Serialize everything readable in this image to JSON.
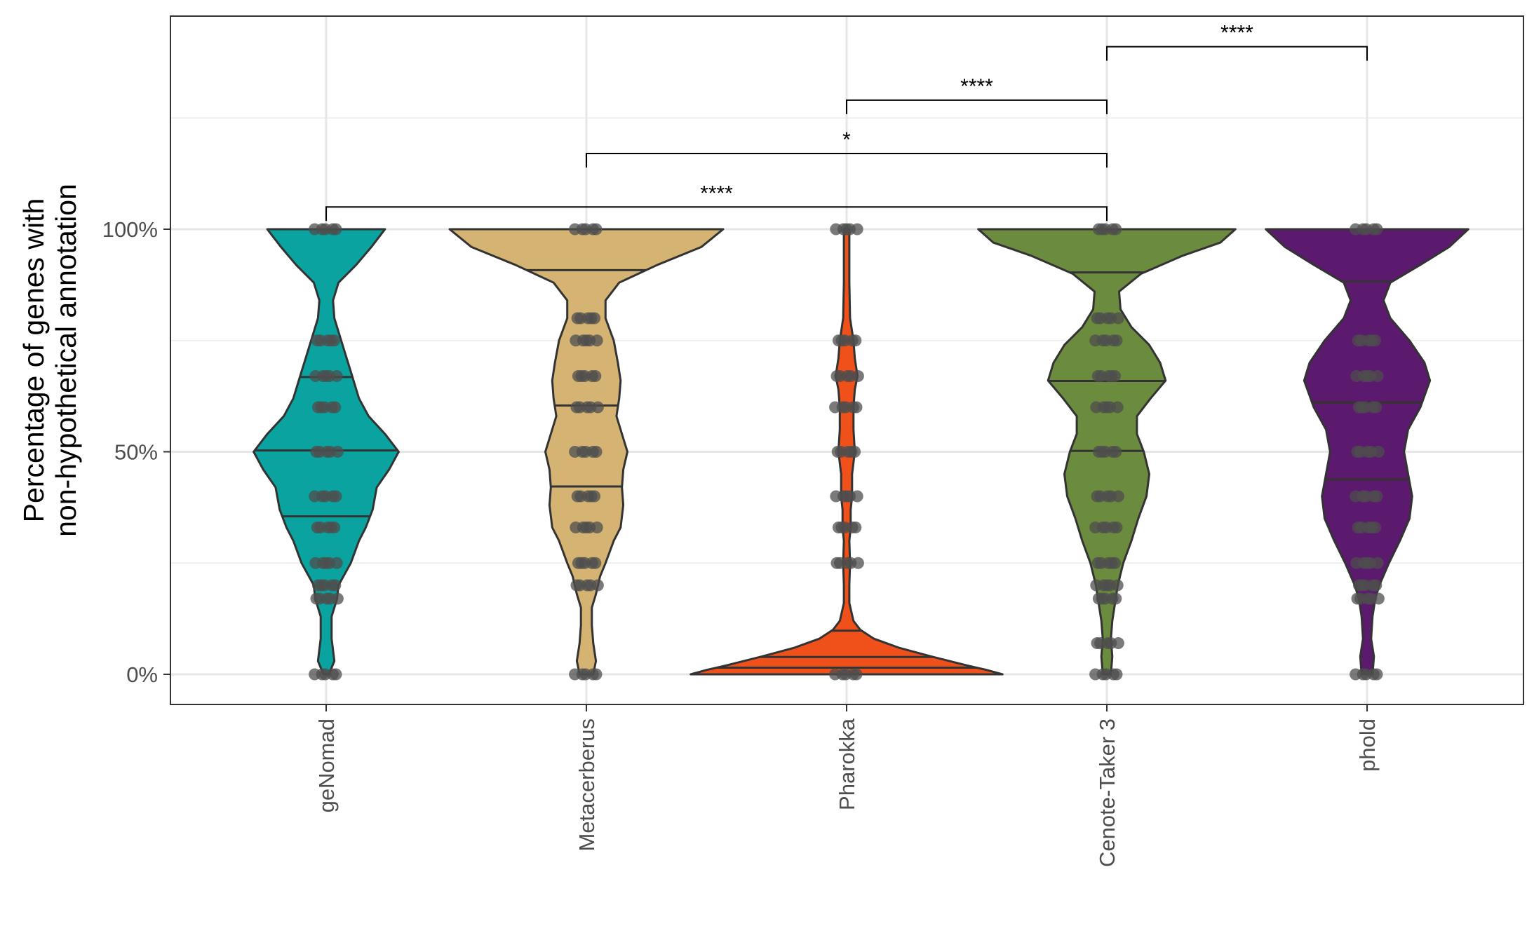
{
  "chart_data": {
    "type": "violin",
    "ylabel_lines": [
      "Percentage of genes with",
      "non-hypothetical annotation"
    ],
    "xlabel": "",
    "categories": [
      "geNomad",
      "Metacerberus",
      "Pharokka",
      "Cenote-Taker 3",
      "phold"
    ],
    "yticks": [
      0,
      50,
      100
    ],
    "ytick_labels": [
      "0%",
      "50%",
      "100%"
    ],
    "ylim": [
      -7,
      148
    ],
    "grid": true,
    "colors": {
      "geNomad": "#0aa3a0",
      "Metacerberus": "#d4b373",
      "Pharokka": "#f0511b",
      "Cenote-Taker 3": "#6b8b3e",
      "phold": "#5c1a6e"
    },
    "series": [
      {
        "name": "geNomad",
        "quantiles": [
          35.5,
          50.3,
          66.8
        ],
        "density": [
          [
            0,
            0.02
          ],
          [
            3,
            0.06
          ],
          [
            8,
            0.04
          ],
          [
            13,
            0.04
          ],
          [
            17,
            0.08
          ],
          [
            20,
            0.09
          ],
          [
            25,
            0.18
          ],
          [
            30,
            0.24
          ],
          [
            33,
            0.29
          ],
          [
            37,
            0.34
          ],
          [
            42,
            0.37
          ],
          [
            46,
            0.46
          ],
          [
            50,
            0.53
          ],
          [
            54,
            0.43
          ],
          [
            58,
            0.31
          ],
          [
            62,
            0.24
          ],
          [
            67,
            0.19
          ],
          [
            72,
            0.14
          ],
          [
            76,
            0.1
          ],
          [
            80,
            0.06
          ],
          [
            84,
            0.05
          ],
          [
            88,
            0.09
          ],
          [
            92,
            0.22
          ],
          [
            96,
            0.33
          ],
          [
            100,
            0.43
          ]
        ],
        "points": [
          0,
          17,
          20,
          25,
          33,
          40,
          50,
          60,
          67,
          75,
          100
        ]
      },
      {
        "name": "Metacerberus",
        "quantiles": [
          42.2,
          60.4,
          90.8
        ],
        "density": [
          [
            0,
            0.05
          ],
          [
            3,
            0.07
          ],
          [
            7,
            0.05
          ],
          [
            11,
            0.04
          ],
          [
            15,
            0.04
          ],
          [
            18,
            0.07
          ],
          [
            22,
            0.1
          ],
          [
            25,
            0.14
          ],
          [
            30,
            0.2
          ],
          [
            33,
            0.25
          ],
          [
            38,
            0.27
          ],
          [
            42,
            0.26
          ],
          [
            46,
            0.27
          ],
          [
            50,
            0.3
          ],
          [
            54,
            0.26
          ],
          [
            58,
            0.22
          ],
          [
            62,
            0.24
          ],
          [
            66,
            0.25
          ],
          [
            70,
            0.23
          ],
          [
            75,
            0.2
          ],
          [
            80,
            0.14
          ],
          [
            84,
            0.14
          ],
          [
            88,
            0.24
          ],
          [
            92,
            0.52
          ],
          [
            96,
            0.84
          ],
          [
            100,
            1.0
          ]
        ],
        "points": [
          0,
          20,
          25,
          33,
          40,
          50,
          60,
          67,
          75,
          80,
          100
        ]
      },
      {
        "name": "Pharokka",
        "quantiles": [
          1.5,
          3.9,
          9.8
        ],
        "density": [
          [
            0,
            1.14
          ],
          [
            1,
            1.02
          ],
          [
            2,
            0.88
          ],
          [
            4,
            0.62
          ],
          [
            6,
            0.38
          ],
          [
            8,
            0.2
          ],
          [
            10,
            0.1
          ],
          [
            12,
            0.05
          ],
          [
            16,
            0.02
          ],
          [
            20,
            0.02
          ],
          [
            25,
            0.025
          ],
          [
            30,
            0.02
          ],
          [
            33,
            0.03
          ],
          [
            37,
            0.03
          ],
          [
            40,
            0.04
          ],
          [
            45,
            0.04
          ],
          [
            50,
            0.06
          ],
          [
            55,
            0.05
          ],
          [
            60,
            0.05
          ],
          [
            64,
            0.06
          ],
          [
            67,
            0.08
          ],
          [
            71,
            0.06
          ],
          [
            75,
            0.05
          ],
          [
            80,
            0.025
          ],
          [
            88,
            0.02
          ],
          [
            94,
            0.02
          ],
          [
            100,
            0.02
          ]
        ],
        "points": [
          0,
          25,
          33,
          40,
          50,
          60,
          67,
          75,
          100
        ]
      },
      {
        "name": "Cenote-Taker 3",
        "quantiles": [
          50.2,
          65.9,
          90.3
        ],
        "density": [
          [
            0,
            0.03
          ],
          [
            4,
            0.04
          ],
          [
            8,
            0.03
          ],
          [
            12,
            0.04
          ],
          [
            16,
            0.06
          ],
          [
            20,
            0.08
          ],
          [
            25,
            0.12
          ],
          [
            30,
            0.18
          ],
          [
            35,
            0.23
          ],
          [
            40,
            0.29
          ],
          [
            45,
            0.31
          ],
          [
            50,
            0.27
          ],
          [
            54,
            0.22
          ],
          [
            58,
            0.22
          ],
          [
            62,
            0.32
          ],
          [
            66,
            0.43
          ],
          [
            70,
            0.39
          ],
          [
            74,
            0.31
          ],
          [
            78,
            0.18
          ],
          [
            82,
            0.1
          ],
          [
            86,
            0.09
          ],
          [
            90,
            0.25
          ],
          [
            94,
            0.55
          ],
          [
            97,
            0.83
          ],
          [
            100,
            0.94
          ]
        ],
        "points": [
          0,
          7,
          17,
          20,
          25,
          33,
          40,
          50,
          60,
          67,
          75,
          80,
          100
        ]
      },
      {
        "name": "phold",
        "quantiles": [
          43.8,
          61.1,
          88.3
        ],
        "density": [
          [
            0,
            0.04
          ],
          [
            4,
            0.05
          ],
          [
            8,
            0.03
          ],
          [
            13,
            0.04
          ],
          [
            17,
            0.06
          ],
          [
            20,
            0.09
          ],
          [
            25,
            0.16
          ],
          [
            30,
            0.24
          ],
          [
            35,
            0.31
          ],
          [
            40,
            0.33
          ],
          [
            45,
            0.3
          ],
          [
            50,
            0.27
          ],
          [
            55,
            0.3
          ],
          [
            60,
            0.39
          ],
          [
            66,
            0.46
          ],
          [
            70,
            0.42
          ],
          [
            75,
            0.31
          ],
          [
            80,
            0.17
          ],
          [
            84,
            0.12
          ],
          [
            88,
            0.17
          ],
          [
            92,
            0.39
          ],
          [
            96,
            0.6
          ],
          [
            100,
            0.74
          ]
        ],
        "points": [
          0,
          17,
          20,
          25,
          33,
          40,
          50,
          60,
          67,
          75,
          100
        ]
      }
    ],
    "comparisons": [
      {
        "from": "geNomad",
        "to": "Cenote-Taker 3",
        "label": "****",
        "y": 105
      },
      {
        "from": "Metacerberus",
        "to": "Cenote-Taker 3",
        "label": "*",
        "y": 117
      },
      {
        "from": "Pharokka",
        "to": "Cenote-Taker 3",
        "label": "****",
        "y": 129
      },
      {
        "from": "Cenote-Taker 3",
        "to": "phold",
        "label": "****",
        "y": 141
      }
    ]
  }
}
